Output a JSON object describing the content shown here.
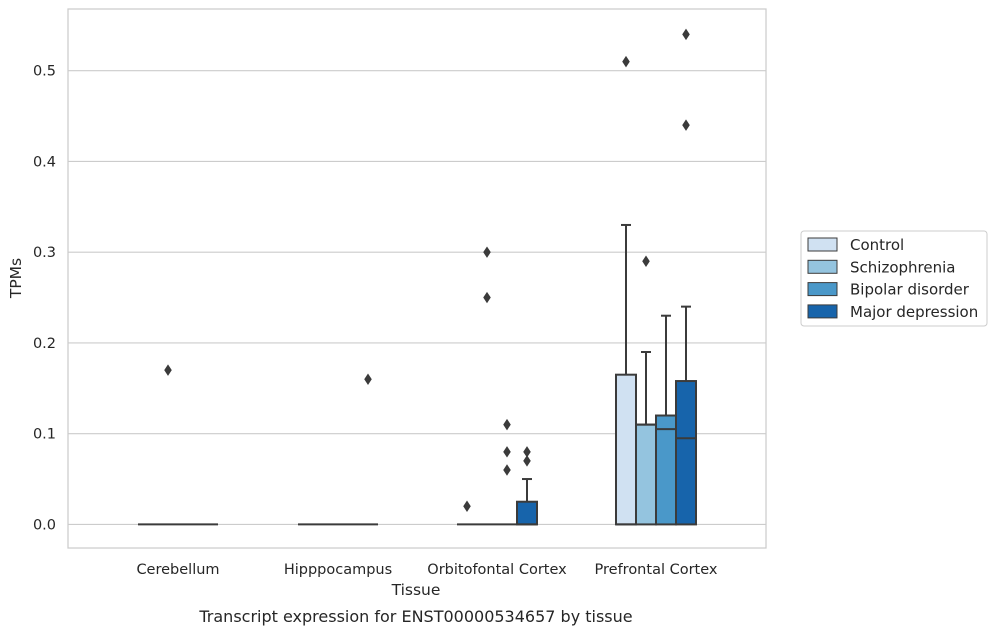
{
  "chart_data": {
    "type": "box",
    "caption": "Transcript expression for ENST00000534657 by tissue",
    "xlabel": "Tissue",
    "ylabel": "TPMs",
    "ylim": [
      -0.026,
      0.568
    ],
    "yticks": [
      0.0,
      0.1,
      0.2,
      0.3,
      0.4,
      0.5
    ],
    "ytick_labels": [
      "0.0",
      "0.1",
      "0.2",
      "0.3",
      "0.4",
      "0.5"
    ],
    "grid": "horizontal",
    "legend_position": "right",
    "categories": [
      "Cerebellum",
      "Hipppocampus",
      "Orbitofontal Cortex",
      "Prefrontal Cortex"
    ],
    "series": [
      {
        "name": "Control",
        "color": "#d0e1f2",
        "boxes": [
          {
            "q1": 0,
            "median": 0,
            "q3": 0,
            "whislo": 0,
            "whishi": 0,
            "fliers": []
          },
          {
            "q1": 0,
            "median": 0,
            "q3": 0,
            "whislo": 0,
            "whishi": 0,
            "fliers": []
          },
          {
            "q1": 0,
            "median": 0,
            "q3": 0,
            "whislo": 0,
            "whishi": 0,
            "fliers": [
              0.02
            ]
          },
          {
            "q1": 0,
            "median": 0,
            "q3": 0.165,
            "whislo": 0,
            "whishi": 0.33,
            "fliers": [
              0.51
            ]
          }
        ]
      },
      {
        "name": "Schizophrenia",
        "color": "#94c4df",
        "boxes": [
          {
            "q1": 0,
            "median": 0,
            "q3": 0,
            "whislo": 0,
            "whishi": 0,
            "fliers": [
              0.17
            ]
          },
          {
            "q1": 0,
            "median": 0,
            "q3": 0,
            "whislo": 0,
            "whishi": 0,
            "fliers": []
          },
          {
            "q1": 0,
            "median": 0,
            "q3": 0,
            "whislo": 0,
            "whishi": 0,
            "fliers": [
              0.3,
              0.25
            ]
          },
          {
            "q1": 0,
            "median": 0.11,
            "q3": 0.11,
            "whislo": 0,
            "whishi": 0.19,
            "fliers": [
              0.29
            ]
          }
        ]
      },
      {
        "name": "Bipolar disorder",
        "color": "#4a98c9",
        "boxes": [
          {
            "q1": 0,
            "median": 0,
            "q3": 0,
            "whislo": 0,
            "whishi": 0,
            "fliers": []
          },
          {
            "q1": 0,
            "median": 0,
            "q3": 0,
            "whislo": 0,
            "whishi": 0,
            "fliers": []
          },
          {
            "q1": 0,
            "median": 0,
            "q3": 0,
            "whislo": 0,
            "whishi": 0,
            "fliers": [
              0.11,
              0.08,
              0.06
            ]
          },
          {
            "q1": 0,
            "median": 0.105,
            "q3": 0.12,
            "whislo": 0,
            "whishi": 0.23,
            "fliers": []
          }
        ]
      },
      {
        "name": "Major depression",
        "color": "#1764ab",
        "boxes": [
          {
            "q1": 0,
            "median": 0,
            "q3": 0,
            "whislo": 0,
            "whishi": 0,
            "fliers": []
          },
          {
            "q1": 0,
            "median": 0,
            "q3": 0,
            "whislo": 0,
            "whishi": 0,
            "fliers": [
              0.16
            ]
          },
          {
            "q1": 0,
            "median": 0,
            "q3": 0.025,
            "whislo": 0,
            "whishi": 0.05,
            "fliers": [
              0.08,
              0.07
            ]
          },
          {
            "q1": 0,
            "median": 0.095,
            "q3": 0.158,
            "whislo": 0,
            "whishi": 0.24,
            "fliers": [
              0.54,
              0.44
            ]
          }
        ]
      }
    ]
  }
}
